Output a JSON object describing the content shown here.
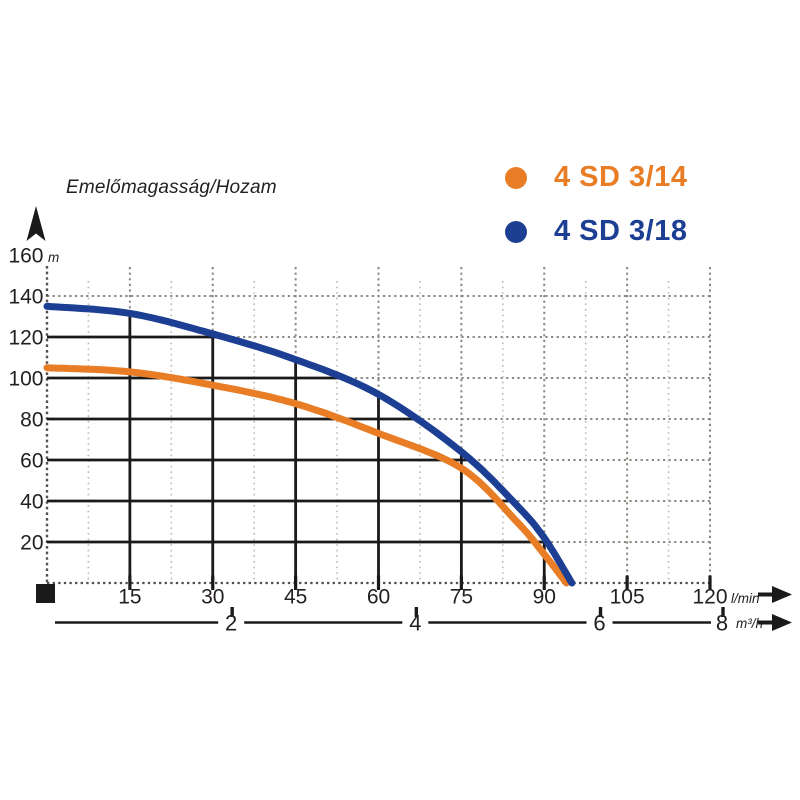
{
  "title": "Emelőmagasság/Hozam",
  "legend": {
    "items": [
      {
        "label": "4 SD 3/14",
        "color": "#e87d26"
      },
      {
        "label": "4 SD 3/18",
        "color": "#1c3f93"
      }
    ]
  },
  "chart_data": {
    "type": "line",
    "title": "Emelőmagasság/Hozam",
    "y_axis": {
      "unit": "m",
      "ticks": [
        160,
        140,
        120,
        100,
        80,
        60,
        40,
        20
      ],
      "range": [
        0,
        160
      ],
      "grid": "dotted, 20 m steps; solid black grid only under the 4 SD 3/18 curve"
    },
    "x_axis_primary": {
      "unit": "l/min",
      "ticks": [
        15,
        30,
        45,
        60,
        75,
        90,
        105,
        120
      ],
      "range": [
        0,
        120
      ],
      "minor_tick_step": 7.5
    },
    "x_axis_secondary": {
      "unit": "m³/h",
      "ticks": [
        2,
        4,
        6,
        8
      ]
    },
    "legend_position": "top-right",
    "series": [
      {
        "name": "4 SD 3/14",
        "color": "#e87d26",
        "points": [
          [
            0,
            105
          ],
          [
            15,
            103
          ],
          [
            30,
            96.5
          ],
          [
            45,
            87.5
          ],
          [
            60,
            73
          ],
          [
            75,
            56
          ],
          [
            85,
            30
          ],
          [
            90,
            14
          ],
          [
            94,
            0
          ]
        ]
      },
      {
        "name": "4 SD 3/18",
        "color": "#1c3f93",
        "points": [
          [
            0,
            135
          ],
          [
            15,
            131.5
          ],
          [
            30,
            121.5
          ],
          [
            45,
            109
          ],
          [
            60,
            92
          ],
          [
            75,
            64
          ],
          [
            85,
            38
          ],
          [
            90,
            22
          ],
          [
            95,
            0
          ]
        ]
      }
    ]
  },
  "icons": {
    "y_axis_arrow": "up-arrow",
    "x_axis_arrows": "right-arrow",
    "origin_marker": "black-square"
  },
  "colors": {
    "text": "#231f20",
    "solid_grid": "#1a1a1a",
    "dotted_grid_major": "#8b8680",
    "dotted_grid_minor": "#bdb8b2",
    "dotted_axis": "#55514d"
  }
}
